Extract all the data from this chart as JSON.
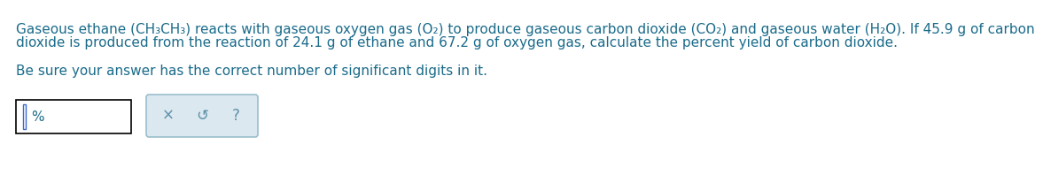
{
  "bg_color": "#ffffff",
  "text_color": "#1a6b8a",
  "line1": "Gaseous ethane (CH₃CH₃) reacts with gaseous oxygen gas (O₂) to produce gaseous carbon dioxide (CO₂) and gaseous water (H₂O). If 45.9 g of carbon",
  "line2": "dioxide is produced from the reaction of 24.1 g of ethane and 67.2 g of oxygen gas, calculate the percent yield of carbon dioxide.",
  "line3": "Be sure your answer has the correct number of significant digits in it.",
  "font_size": 11.0,
  "percent_sign": "%",
  "input_border_color": "#000000",
  "cursor_color": "#3a6acc",
  "button_color": "#dce8ef",
  "button_border_color": "#99bfcc",
  "button_text_color": "#5a8fa8",
  "button_symbols": [
    "×",
    "↺",
    "?"
  ]
}
